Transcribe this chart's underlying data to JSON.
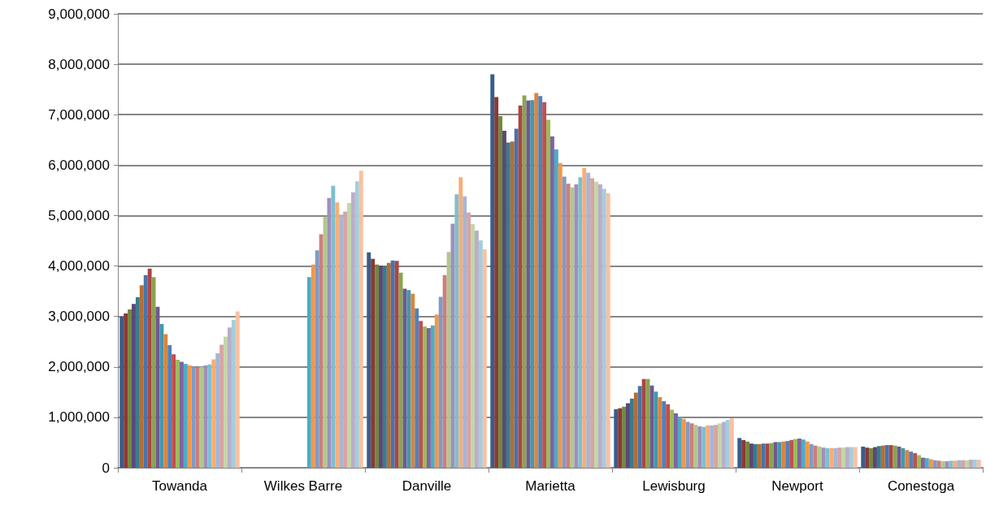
{
  "chart_data": {
    "type": "bar",
    "categories": [
      "Towanda",
      "Wilkes Barre",
      "Danville",
      "Marietta",
      "Lewisburg",
      "Newport",
      "Conestoga"
    ],
    "ylim": [
      0,
      9000000
    ],
    "yticks": [
      {
        "value": 0,
        "label": "0"
      },
      {
        "value": 1000000,
        "label": "1,000,000"
      },
      {
        "value": 2000000,
        "label": "2,000,000"
      },
      {
        "value": 3000000,
        "label": "3,000,000"
      },
      {
        "value": 4000000,
        "label": "4,000,000"
      },
      {
        "value": 5000000,
        "label": "5,000,000"
      },
      {
        "value": 6000000,
        "label": "6,000,000"
      },
      {
        "value": 7000000,
        "label": "7,000,000"
      },
      {
        "value": 8000000,
        "label": "8,000,000"
      },
      {
        "value": 9000000,
        "label": "9,000,000"
      }
    ],
    "grid": "y",
    "series": [
      {
        "color": "#385d8a",
        "values": [
          3000000,
          null,
          4270000,
          7800000,
          1160000,
          590000,
          420000
        ]
      },
      {
        "color": "#8c3836",
        "values": [
          3060000,
          null,
          4140000,
          7350000,
          1180000,
          550000,
          400000
        ]
      },
      {
        "color": "#71893f",
        "values": [
          3140000,
          null,
          4030000,
          6970000,
          1210000,
          520000,
          390000
        ]
      },
      {
        "color": "#5c4776",
        "values": [
          3250000,
          null,
          4010000,
          6680000,
          1280000,
          480000,
          410000
        ]
      },
      {
        "color": "#357d91",
        "values": [
          3380000,
          null,
          4000000,
          6450000,
          1370000,
          470000,
          430000
        ]
      },
      {
        "color": "#b66d31",
        "values": [
          3620000,
          null,
          4060000,
          6470000,
          1490000,
          470000,
          440000
        ]
      },
      {
        "color": "#4674ab",
        "values": [
          3820000,
          null,
          4110000,
          6720000,
          1620000,
          480000,
          450000
        ]
      },
      {
        "color": "#aa4643",
        "values": [
          3950000,
          null,
          4100000,
          7180000,
          1760000,
          480000,
          450000
        ]
      },
      {
        "color": "#89a54e",
        "values": [
          3780000,
          null,
          3870000,
          7380000,
          1760000,
          490000,
          440000
        ]
      },
      {
        "color": "#71588f",
        "values": [
          3190000,
          null,
          3550000,
          7280000,
          1630000,
          510000,
          420000
        ]
      },
      {
        "color": "#4198af",
        "values": [
          2850000,
          null,
          3520000,
          7290000,
          1510000,
          510000,
          390000
        ]
      },
      {
        "color": "#db843d",
        "values": [
          2650000,
          null,
          3450000,
          7430000,
          1400000,
          520000,
          350000
        ]
      },
      {
        "color": "#4f81bd",
        "values": [
          2430000,
          null,
          3160000,
          7370000,
          1320000,
          530000,
          320000
        ]
      },
      {
        "color": "#c0504d",
        "values": [
          2250000,
          null,
          2910000,
          7250000,
          1260000,
          550000,
          290000
        ]
      },
      {
        "color": "#9bbb59",
        "values": [
          2140000,
          null,
          2800000,
          6900000,
          1150000,
          570000,
          250000
        ]
      },
      {
        "color": "#8064a2",
        "values": [
          2100000,
          null,
          2770000,
          6570000,
          1080000,
          580000,
          200000
        ]
      },
      {
        "color": "#4bacc6",
        "values": [
          2060000,
          3780000,
          2820000,
          6310000,
          1010000,
          560000,
          190000
        ]
      },
      {
        "color": "#f79646",
        "values": [
          2030000,
          4030000,
          3040000,
          6040000,
          970000,
          520000,
          170000
        ]
      },
      {
        "color": "#7e9bc8",
        "values": [
          2000000,
          4310000,
          3390000,
          5770000,
          910000,
          470000,
          150000
        ]
      },
      {
        "color": "#ce7e7c",
        "values": [
          1990000,
          4630000,
          3820000,
          5630000,
          880000,
          440000,
          140000
        ]
      },
      {
        "color": "#b0c98a",
        "values": [
          2000000,
          4980000,
          4280000,
          5560000,
          850000,
          420000,
          130000
        ]
      },
      {
        "color": "#a08fba",
        "values": [
          2030000,
          5350000,
          4840000,
          5620000,
          820000,
          400000,
          130000
        ]
      },
      {
        "color": "#7cbfd4",
        "values": [
          2050000,
          5590000,
          5420000,
          5760000,
          810000,
          390000,
          140000
        ]
      },
      {
        "color": "#f9ad75",
        "values": [
          2150000,
          5260000,
          5760000,
          5940000,
          840000,
          390000,
          140000
        ]
      },
      {
        "color": "#a5b6d6",
        "values": [
          2270000,
          5020000,
          5380000,
          5850000,
          840000,
          390000,
          150000
        ]
      },
      {
        "color": "#d9a3a2",
        "values": [
          2440000,
          5080000,
          5060000,
          5740000,
          850000,
          400000,
          150000
        ]
      },
      {
        "color": "#c4d6a8",
        "values": [
          2600000,
          5250000,
          4830000,
          5670000,
          880000,
          400000,
          150000
        ]
      },
      {
        "color": "#b9aecb",
        "values": [
          2780000,
          5460000,
          4700000,
          5620000,
          910000,
          410000,
          160000
        ]
      },
      {
        "color": "#a3cedd",
        "values": [
          2930000,
          5680000,
          4510000,
          5530000,
          950000,
          410000,
          160000
        ]
      },
      {
        "color": "#fac0a1",
        "values": [
          3100000,
          5890000,
          4330000,
          5440000,
          980000,
          410000,
          160000
        ]
      }
    ]
  }
}
